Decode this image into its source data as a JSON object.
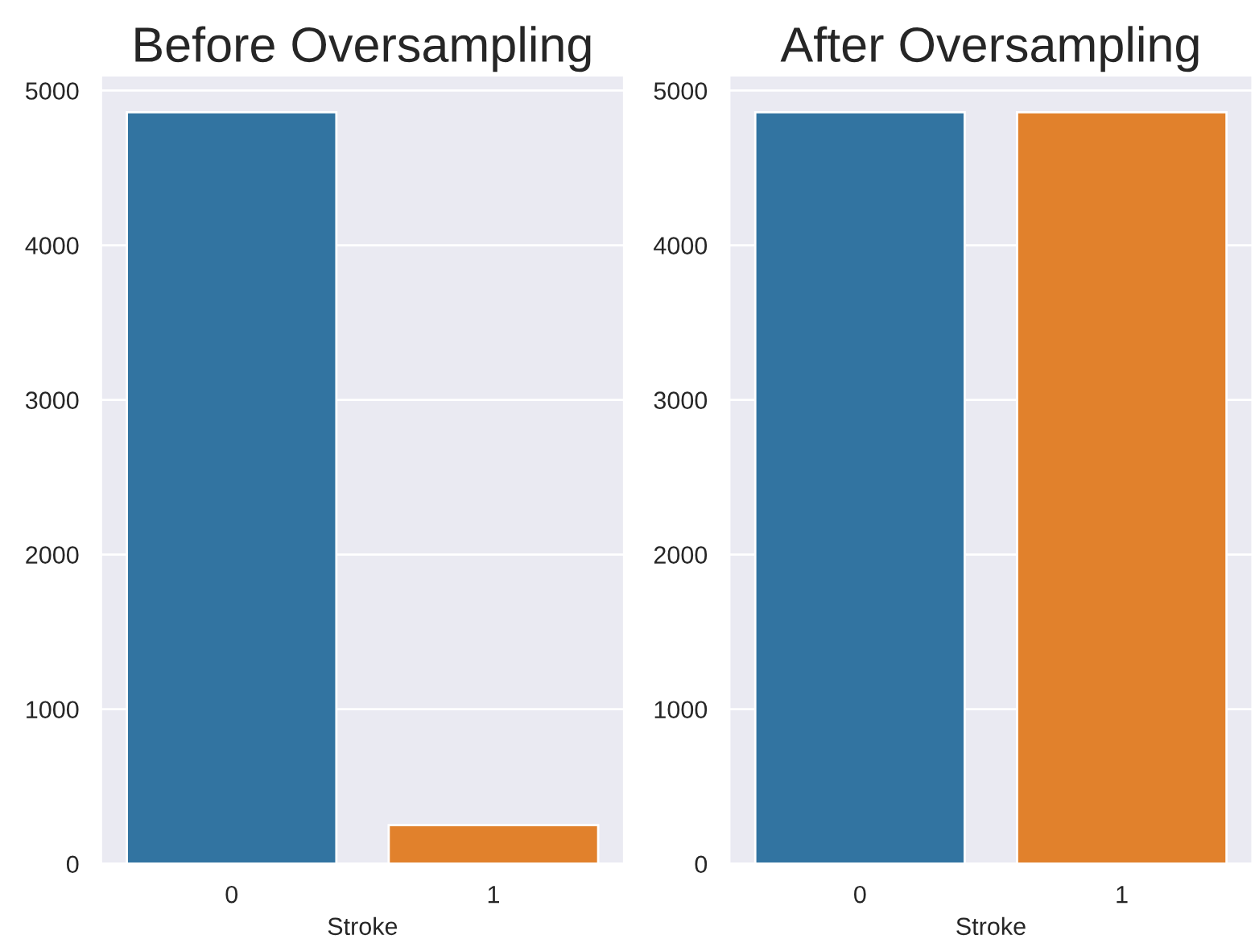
{
  "chart_data": [
    {
      "type": "bar",
      "title": "Before Oversampling",
      "xlabel": "Stroke",
      "categories": [
        "0",
        "1"
      ],
      "values": [
        4860,
        250
      ],
      "colors": [
        "#3274a1",
        "#e1812c"
      ],
      "ylim": [
        0,
        5100
      ],
      "yticks": [
        0,
        1000,
        2000,
        3000,
        4000,
        5000
      ],
      "grid": "y"
    },
    {
      "type": "bar",
      "title": "After Oversampling",
      "xlabel": "Stroke",
      "categories": [
        "0",
        "1"
      ],
      "values": [
        4860,
        4860
      ],
      "colors": [
        "#3274a1",
        "#e1812c"
      ],
      "ylim": [
        0,
        5100
      ],
      "yticks": [
        0,
        1000,
        2000,
        3000,
        4000,
        5000
      ],
      "grid": "y"
    }
  ]
}
